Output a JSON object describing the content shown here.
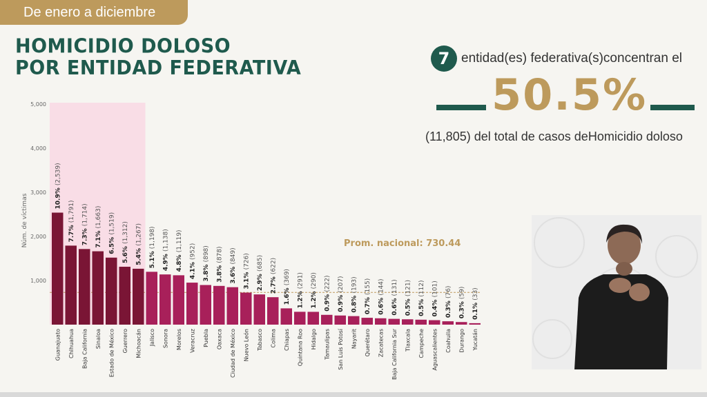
{
  "header": {
    "period_tag": "De enero a diciembre"
  },
  "title": {
    "line1": "HOMICIDIO DOLOSO",
    "line2": "POR ENTIDAD FEDERATIVA"
  },
  "summary": {
    "count": "7",
    "line1": "entidad(es) federativa(s)concentran el",
    "percent": "50.5%",
    "line3": "(11,805) del total de casos deHomicidio doloso"
  },
  "colors": {
    "highlight_bar": "#7a1535",
    "normal_bar": "#a8205a",
    "highlight_band": "#f9dde6",
    "accent": "#bd9a5c",
    "brand": "#1f5a4d"
  },
  "chart_data": {
    "type": "bar",
    "ylabel": "Núm. de víctimas",
    "ylim": [
      0,
      5000
    ],
    "yticks": [
      "5,000",
      "4,000",
      "3,000",
      "2,000",
      "1,000"
    ],
    "grid": false,
    "average_label": "Prom. nacional: 730.44",
    "average_value": 730.44,
    "highlighted_count": 7,
    "categories": [
      "Guanajuato",
      "Chihuahua",
      "Baja California",
      "Sinaloa",
      "Estado de México",
      "Guerrero",
      "Michoacán",
      "Jalisco",
      "Sonora",
      "Morelos",
      "Veracruz",
      "Puebla",
      "Oaxaca",
      "Ciudad de México",
      "Nuevo León",
      "Tabasco",
      "Colima",
      "Chiapas",
      "Quintana Roo",
      "Hidalgo",
      "Tamaulipas",
      "San Luis Potosí",
      "Nayarit",
      "Querétaro",
      "Zacatecas",
      "Baja California Sur",
      "Tlaxcala",
      "Campeche",
      "Aguascalientes",
      "Coahuila",
      "Durango",
      "Yucatán"
    ],
    "values": [
      2539,
      1791,
      1714,
      1663,
      1519,
      1312,
      1267,
      1198,
      1138,
      1119,
      952,
      898,
      878,
      849,
      726,
      685,
      622,
      369,
      291,
      290,
      222,
      207,
      193,
      155,
      144,
      131,
      121,
      112,
      101,
      76,
      59,
      33
    ],
    "percent_labels": [
      "10.9%",
      "7.7%",
      "7.3%",
      "7.1%",
      "6.5%",
      "5.6%",
      "5.4%",
      "5.1%",
      "4.9%",
      "4.8%",
      "4.1%",
      "3.8%",
      "3.8%",
      "3.6%",
      "3.1%",
      "2.9%",
      "2.7%",
      "1.6%",
      "1.2%",
      "1.2%",
      "0.9%",
      "0.9%",
      "0.8%",
      "0.7%",
      "0.6%",
      "0.6%",
      "0.5%",
      "0.5%",
      "0.4%",
      "0.3%",
      "0.3%",
      "0.1%"
    ],
    "count_labels": [
      "(2,539)",
      "(1,791)",
      "(1,714)",
      "(1,663)",
      "(1,519)",
      "(1,312)",
      "(1,267)",
      "(1,198)",
      "(1,138)",
      "(1,119)",
      "(952)",
      "(898)",
      "(878)",
      "(849)",
      "(726)",
      "(685)",
      "(622)",
      "(369)",
      "(291)",
      "(290)",
      "(222)",
      "(207)",
      "(193)",
      "(155)",
      "(144)",
      "(131)",
      "(121)",
      "(112)",
      "(101)",
      "(76)",
      "(59)",
      "(33)"
    ]
  }
}
